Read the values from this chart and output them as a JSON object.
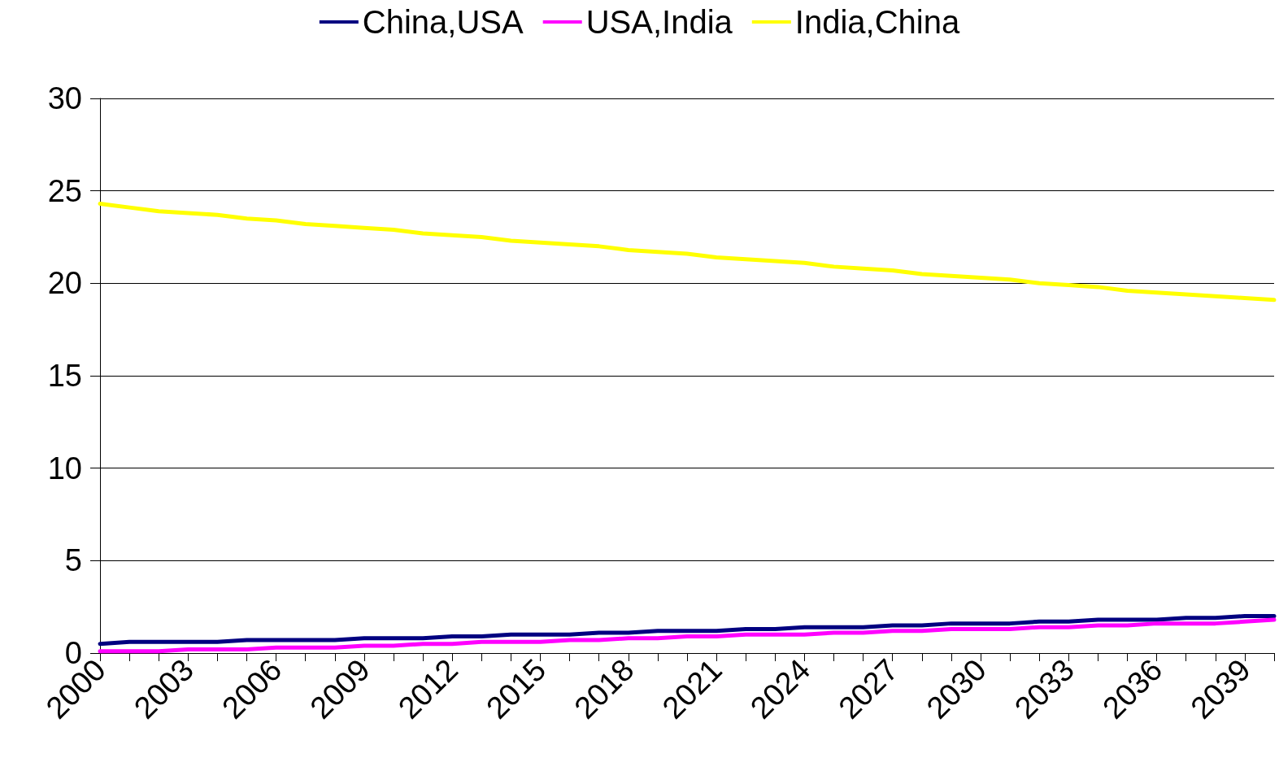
{
  "chart_data": {
    "type": "line",
    "categories": [
      "2000",
      null,
      null,
      "2003",
      null,
      null,
      "2006",
      null,
      null,
      "2009",
      null,
      null,
      "2012",
      null,
      null,
      "2015",
      null,
      null,
      "2018",
      null,
      null,
      "2021",
      null,
      null,
      "2024",
      null,
      null,
      "2027",
      null,
      null,
      "2030",
      null,
      null,
      "2033",
      null,
      null,
      "2036",
      null,
      null,
      "2039",
      null
    ],
    "series": [
      {
        "name": "China,USA",
        "color": "#000080",
        "values": [
          0.5,
          0.6,
          0.6,
          0.6,
          0.6,
          0.7,
          0.7,
          0.7,
          0.7,
          0.8,
          0.8,
          0.8,
          0.9,
          0.9,
          1.0,
          1.0,
          1.0,
          1.1,
          1.1,
          1.2,
          1.2,
          1.2,
          1.3,
          1.3,
          1.4,
          1.4,
          1.4,
          1.5,
          1.5,
          1.6,
          1.6,
          1.6,
          1.7,
          1.7,
          1.8,
          1.8,
          1.8,
          1.9,
          1.9,
          2.0,
          2.0
        ]
      },
      {
        "name": "USA,India",
        "color": "#ff00ff",
        "values": [
          0.1,
          0.1,
          0.1,
          0.2,
          0.2,
          0.2,
          0.3,
          0.3,
          0.3,
          0.4,
          0.4,
          0.5,
          0.5,
          0.6,
          0.6,
          0.6,
          0.7,
          0.7,
          0.8,
          0.8,
          0.9,
          0.9,
          1.0,
          1.0,
          1.0,
          1.1,
          1.1,
          1.2,
          1.2,
          1.3,
          1.3,
          1.3,
          1.4,
          1.4,
          1.5,
          1.5,
          1.6,
          1.6,
          1.6,
          1.7,
          1.8
        ]
      },
      {
        "name": "India,China",
        "color": "#ffff00",
        "values": [
          24.3,
          24.1,
          23.9,
          23.8,
          23.7,
          23.5,
          23.4,
          23.2,
          23.1,
          23.0,
          22.9,
          22.7,
          22.6,
          22.5,
          22.3,
          22.2,
          22.1,
          22.0,
          21.8,
          21.7,
          21.6,
          21.4,
          21.3,
          21.2,
          21.1,
          20.9,
          20.8,
          20.7,
          20.5,
          20.4,
          20.3,
          20.2,
          20.0,
          19.9,
          19.8,
          19.6,
          19.5,
          19.4,
          19.3,
          19.2,
          19.1
        ]
      }
    ],
    "ylim": [
      0,
      30
    ],
    "yticks": [
      0,
      5,
      10,
      15,
      20,
      25,
      30
    ],
    "grid": "y",
    "legend": "top",
    "marker": "none",
    "line_style": "solid"
  }
}
